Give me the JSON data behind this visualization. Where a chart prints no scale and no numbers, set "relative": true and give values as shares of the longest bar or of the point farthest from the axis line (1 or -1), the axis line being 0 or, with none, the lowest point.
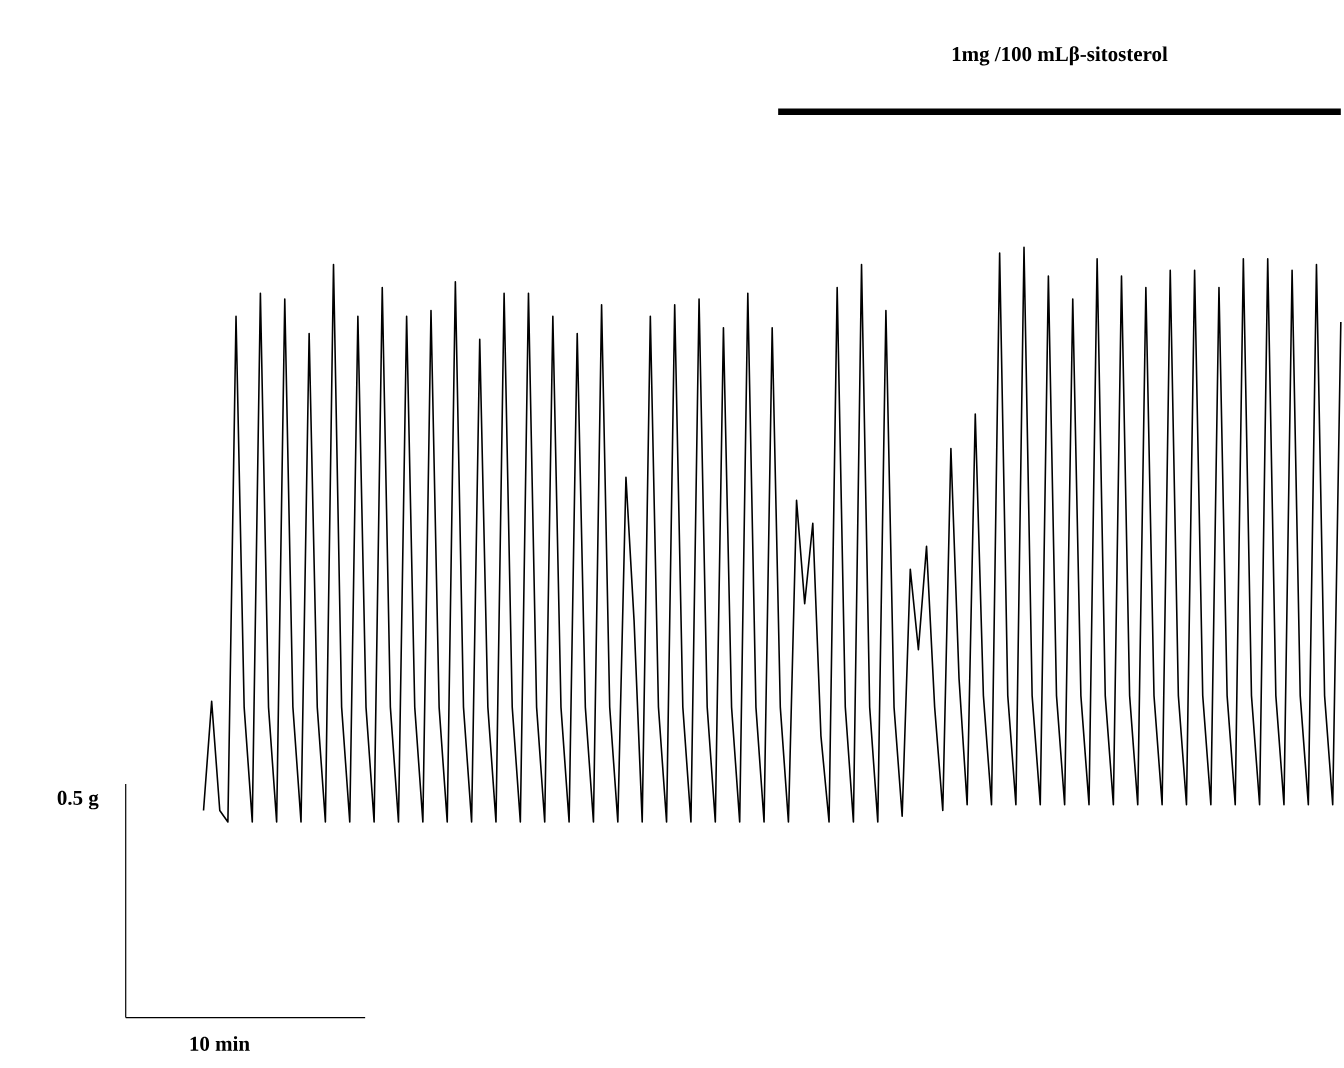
{
  "chart_data": {
    "type": "line",
    "relative": true,
    "marker": "none",
    "line_style": "solid",
    "categories": [
      null,
      null,
      null,
      null,
      null,
      null,
      null,
      null,
      null,
      null,
      null,
      null,
      null,
      null,
      null,
      null,
      null,
      null,
      null,
      null,
      null,
      null,
      null,
      null,
      null,
      null,
      null,
      null,
      null,
      null,
      null,
      null,
      null,
      null,
      null,
      null,
      null,
      null,
      null,
      null,
      null,
      null,
      null,
      null,
      null,
      null,
      null,
      null,
      null,
      null,
      null,
      null,
      null,
      null,
      null,
      null,
      null,
      null,
      null,
      null,
      null,
      null,
      null,
      null,
      null,
      null,
      null,
      null,
      null,
      null,
      null,
      null,
      null,
      null,
      null,
      null,
      null,
      null,
      null,
      null,
      null,
      null,
      null,
      null,
      null,
      null,
      null,
      null,
      null,
      null,
      null,
      null,
      null,
      null,
      null,
      null,
      null,
      null,
      null,
      null,
      null,
      null,
      null,
      null,
      null,
      null,
      null,
      null,
      null,
      null,
      null,
      null,
      null,
      null,
      null,
      null,
      null,
      null,
      null,
      null,
      null,
      null,
      null,
      null,
      null,
      null,
      null,
      null,
      null,
      null,
      null,
      null,
      null,
      null,
      null,
      null,
      null,
      null,
      null,
      null,
      null
    ],
    "series": [
      {
        "color": "#000000",
        "values": [
          0.02,
          0.21,
          0.02,
          0,
          0.88,
          0.2,
          0,
          0.92,
          0.2,
          0,
          0.91,
          0.2,
          0,
          0.85,
          0.2,
          0,
          0.97,
          0.2,
          0,
          0.88,
          0.2,
          0,
          0.93,
          0.2,
          0,
          0.88,
          0.2,
          0,
          0.89,
          0.2,
          0,
          0.94,
          0.2,
          0,
          0.84,
          0.2,
          0,
          0.92,
          0.2,
          0,
          0.92,
          0.2,
          0,
          0.88,
          0.2,
          0,
          0.85,
          0.2,
          0,
          0.9,
          0.2,
          0,
          0.6,
          0.35,
          0,
          0.88,
          0.2,
          0,
          0.9,
          0.2,
          0,
          0.91,
          0.2,
          0,
          0.86,
          0.2,
          0,
          0.92,
          0.2,
          0,
          0.86,
          0.2,
          0,
          0.56,
          0.38,
          0.52,
          0.15,
          0,
          0.93,
          0.2,
          0,
          0.97,
          0.2,
          0,
          0.89,
          0.2,
          0.01,
          0.44,
          0.3,
          0.48,
          0.2,
          0.02,
          0.65,
          0.25,
          0.03,
          0.71,
          0.22,
          0.03,
          0.99,
          0.22,
          0.03,
          1.0,
          0.22,
          0.03,
          0.95,
          0.22,
          0.03,
          0.91,
          0.22,
          0.03,
          0.98,
          0.22,
          0.03,
          0.95,
          0.22,
          0.03,
          0.93,
          0.22,
          0.03,
          0.96,
          0.22,
          0.03,
          0.96,
          0.22,
          0.03,
          0.93,
          0.22,
          0.03,
          0.98,
          0.22,
          0.03,
          0.98,
          0.22,
          0.03,
          0.96,
          0.22,
          0.03,
          0.97,
          0.22,
          0.03,
          0.87
        ]
      }
    ],
    "annotations": [
      "1mg /100 mLβ-sitosterol",
      "0.5 g",
      "10 min"
    ]
  }
}
